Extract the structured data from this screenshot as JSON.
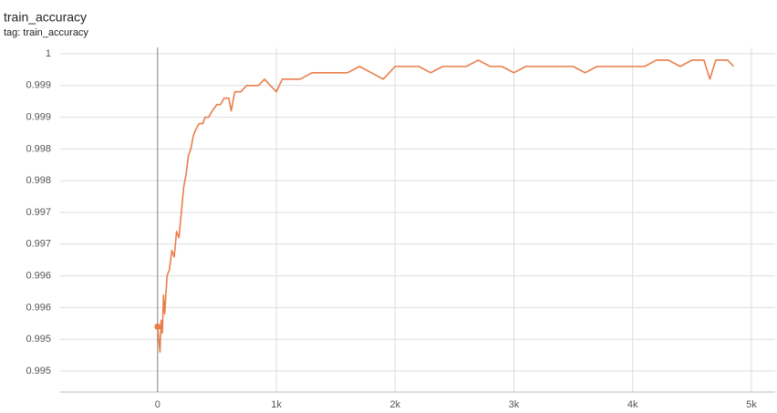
{
  "chart_data": {
    "type": "line",
    "title": "train_accuracy",
    "subtitle": "tag: train_accuracy",
    "x": [
      0,
      10,
      20,
      30,
      40,
      50,
      60,
      80,
      100,
      120,
      140,
      160,
      180,
      200,
      220,
      240,
      260,
      280,
      300,
      320,
      350,
      380,
      400,
      430,
      460,
      500,
      530,
      560,
      600,
      620,
      650,
      700,
      750,
      800,
      850,
      900,
      950,
      1000,
      1050,
      1100,
      1200,
      1300,
      1400,
      1500,
      1600,
      1700,
      1800,
      1900,
      2000,
      2100,
      2200,
      2300,
      2400,
      2500,
      2600,
      2700,
      2800,
      2900,
      3000,
      3100,
      3200,
      3300,
      3400,
      3500,
      3600,
      3700,
      3800,
      3900,
      4000,
      4100,
      4200,
      4300,
      4400,
      4500,
      4600,
      4650,
      4700,
      4800,
      4850
    ],
    "series": [
      {
        "name": "train_accuracy",
        "color": "#ea7e4b",
        "values": [
          0.9957,
          0.9955,
          0.9953,
          0.9958,
          0.9956,
          0.9962,
          0.9959,
          0.9965,
          0.9966,
          0.9969,
          0.9968,
          0.9972,
          0.9971,
          0.9975,
          0.9979,
          0.9981,
          0.9984,
          0.9985,
          0.9987,
          0.9988,
          0.9989,
          0.9989,
          0.999,
          0.999,
          0.9991,
          0.9992,
          0.9992,
          0.9993,
          0.9993,
          0.9991,
          0.9994,
          0.9994,
          0.9995,
          0.9995,
          0.9995,
          0.9996,
          0.9995,
          0.9994,
          0.9996,
          0.9996,
          0.9996,
          0.9997,
          0.9997,
          0.9997,
          0.9997,
          0.9998,
          0.9997,
          0.9996,
          0.9998,
          0.9998,
          0.9998,
          0.9997,
          0.9998,
          0.9998,
          0.9998,
          0.9999,
          0.9998,
          0.9998,
          0.9997,
          0.9998,
          0.9998,
          0.9998,
          0.9998,
          0.9998,
          0.9997,
          0.9998,
          0.9998,
          0.9998,
          0.9998,
          0.9998,
          0.9999,
          0.9999,
          0.9998,
          0.9999,
          0.9999,
          0.9996,
          0.9999,
          0.9999,
          0.9998
        ]
      }
    ],
    "xlim": [
      -820,
      5200
    ],
    "xticks": [
      0,
      {
        "value": 1000,
        "label": "1k"
      },
      {
        "value": 2000,
        "label": "2k"
      },
      {
        "value": 3000,
        "label": "3k"
      },
      {
        "value": 4000,
        "label": "4k"
      },
      {
        "value": 5000,
        "label": "5k"
      }
    ],
    "ylim": [
      0.99467,
      1.0001
    ],
    "yticks": [
      0.995,
      {
        "value": 0.9955,
        "label": "0.995"
      },
      0.996,
      {
        "value": 0.9965,
        "label": "0.996"
      },
      0.997,
      {
        "value": 0.9975,
        "label": "0.997"
      },
      0.998,
      {
        "value": 0.9985,
        "label": "0.998"
      },
      0.999,
      {
        "value": 0.9995,
        "label": "0.999"
      },
      1
    ],
    "grid": true
  }
}
